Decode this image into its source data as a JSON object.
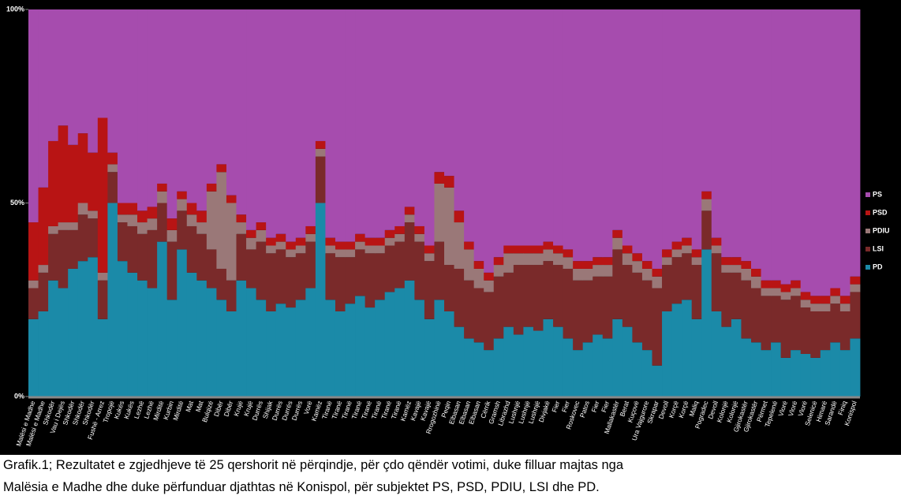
{
  "chart_data": {
    "type": "bar",
    "stacked": true,
    "ylim": [
      0,
      100
    ],
    "yticks": [
      {
        "value": 0,
        "label": "0%"
      },
      {
        "value": 50,
        "label": "50%"
      },
      {
        "value": 100,
        "label": "100%"
      }
    ],
    "categories": [
      "Malësi e Madhe",
      "Malësi e Madhe",
      "Shkodër",
      "Vau i Dejës",
      "Shkodër",
      "Shkodër",
      "Shkodër",
      "Fushë - Arrez",
      "Tropojë",
      "Kukës",
      "Kukës",
      "Lezhë",
      "Lezhë",
      "Mirditë",
      "Kurbin",
      "Mirditë",
      "Mat",
      "Mat",
      "Bulqizë",
      "Dibër",
      "Dibër",
      "Krujë",
      "Krujë",
      "Durrës",
      "Shijak",
      "Durrës",
      "Durrës",
      "Durrës",
      "Vorë",
      "Kamëz",
      "Tiranë",
      "Tiranë",
      "Tiranë",
      "Tiranë",
      "Tiranë",
      "Tiranë",
      "Tiranë",
      "Tiranë",
      "Kamëz",
      "Kavajë",
      "Kavajë",
      "Rrogozhinë",
      "Peqin",
      "Elbasan",
      "Elbasan",
      "Elbasan",
      "Cërrik",
      "Gramsh",
      "Librazhd",
      "Lushnjë",
      "Lushnjë",
      "Lushnjë",
      "Divjakë",
      "Fier",
      "Fier",
      "Roskovec",
      "Patos",
      "Fier",
      "Fier",
      "Mallakastër",
      "Berat",
      "Kuçovë",
      "Ura Vajgurore",
      "Skrapar",
      "Devoll",
      "Korçë",
      "Korçë",
      "Maliq",
      "Pogradec",
      "Devoll",
      "Kolonjë",
      "Kolonjë",
      "Gjirokastër",
      "Gjirokastër",
      "Përmet",
      "Tepelenë",
      "Vlorë",
      "Vlorë",
      "Vlorë",
      "Selenicë",
      "Himarë",
      "Sarandë",
      "Finiq",
      "Konispol"
    ],
    "series": [
      {
        "name": "PD",
        "color": "#1b8aa8",
        "values": [
          20,
          22,
          30,
          28,
          33,
          35,
          36,
          20,
          50,
          35,
          32,
          30,
          28,
          40,
          25,
          38,
          32,
          30,
          28,
          25,
          22,
          30,
          28,
          25,
          22,
          24,
          23,
          25,
          28,
          50,
          25,
          22,
          24,
          26,
          23,
          25,
          27,
          28,
          30,
          25,
          20,
          25,
          22,
          18,
          15,
          14,
          12,
          15,
          18,
          16,
          18,
          17,
          20,
          18,
          15,
          12,
          14,
          16,
          15,
          20,
          18,
          14,
          12,
          8,
          22,
          24,
          25,
          20,
          38,
          22,
          18,
          20,
          15,
          14,
          12,
          14,
          10,
          12,
          11,
          10,
          12,
          14,
          12,
          15
        ]
      },
      {
        "name": "LSI",
        "color": "#7a2a2a",
        "values": [
          8,
          10,
          12,
          15,
          10,
          12,
          10,
          10,
          8,
          10,
          12,
          12,
          15,
          10,
          15,
          10,
          12,
          12,
          10,
          8,
          8,
          12,
          10,
          15,
          15,
          14,
          13,
          12,
          12,
          12,
          12,
          14,
          12,
          12,
          14,
          12,
          12,
          12,
          15,
          15,
          15,
          15,
          12,
          15,
          15,
          14,
          15,
          16,
          14,
          18,
          16,
          17,
          15,
          16,
          18,
          18,
          16,
          15,
          16,
          18,
          16,
          18,
          18,
          20,
          12,
          12,
          12,
          14,
          10,
          15,
          14,
          12,
          15,
          14,
          14,
          12,
          15,
          14,
          12,
          12,
          10,
          10,
          10,
          12
        ]
      },
      {
        "name": "PDIU",
        "color": "#9a7878",
        "values": [
          2,
          2,
          2,
          2,
          2,
          3,
          2,
          2,
          2,
          2,
          3,
          3,
          3,
          3,
          3,
          3,
          3,
          3,
          15,
          25,
          20,
          3,
          3,
          3,
          2,
          2,
          2,
          2,
          2,
          2,
          2,
          2,
          2,
          2,
          2,
          2,
          2,
          2,
          2,
          2,
          2,
          15,
          20,
          12,
          8,
          5,
          3,
          3,
          5,
          3,
          3,
          3,
          3,
          3,
          3,
          3,
          3,
          3,
          3,
          3,
          3,
          3,
          3,
          3,
          2,
          2,
          2,
          2,
          3,
          2,
          2,
          2,
          3,
          3,
          2,
          2,
          2,
          2,
          2,
          2,
          2,
          2,
          2,
          2
        ]
      },
      {
        "name": "PSD",
        "color": "#b81414",
        "values": [
          15,
          20,
          22,
          25,
          20,
          18,
          15,
          40,
          3,
          3,
          3,
          3,
          3,
          2,
          3,
          2,
          3,
          3,
          2,
          2,
          2,
          2,
          2,
          2,
          2,
          2,
          2,
          2,
          2,
          2,
          2,
          2,
          2,
          2,
          2,
          2,
          2,
          2,
          2,
          2,
          2,
          3,
          3,
          3,
          2,
          2,
          2,
          2,
          2,
          2,
          2,
          2,
          2,
          2,
          2,
          2,
          2,
          2,
          2,
          2,
          2,
          2,
          2,
          2,
          2,
          2,
          2,
          2,
          2,
          2,
          2,
          2,
          2,
          2,
          2,
          2,
          2,
          2,
          2,
          2,
          2,
          2,
          2,
          2
        ]
      },
      {
        "name": "PS",
        "color": "#a64cae",
        "values": [
          55,
          46,
          34,
          30,
          35,
          32,
          37,
          28,
          37,
          50,
          50,
          52,
          51,
          45,
          54,
          47,
          50,
          52,
          45,
          40,
          48,
          53,
          57,
          55,
          59,
          58,
          60,
          59,
          56,
          34,
          59,
          60,
          60,
          58,
          59,
          59,
          57,
          56,
          51,
          56,
          61,
          42,
          43,
          52,
          60,
          65,
          68,
          64,
          61,
          61,
          61,
          61,
          60,
          61,
          62,
          65,
          65,
          64,
          64,
          57,
          61,
          63,
          65,
          67,
          62,
          60,
          59,
          62,
          47,
          59,
          64,
          64,
          65,
          67,
          70,
          70,
          71,
          70,
          73,
          74,
          74,
          72,
          74,
          69
        ]
      }
    ],
    "caption": [
      "Grafik.1; Rezultatet e zgjedhjeve të 25 qershorit në përqindje, për çdo qëndër votimi, duke filluar majtas nga",
      "Malësia e Madhe dhe duke përfunduar djathtas në Konispol, për subjektet PS, PSD, PDIU, LSI dhe PD."
    ]
  }
}
